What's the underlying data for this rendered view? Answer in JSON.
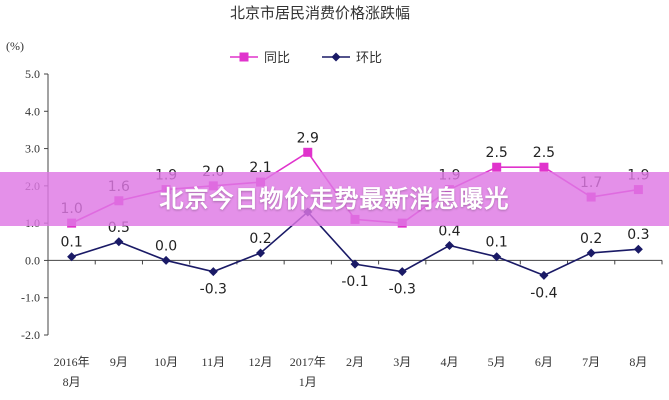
{
  "chart_data": {
    "type": "line",
    "title": "北京市居民消费价格涨跌幅",
    "ylabel": "(%)",
    "ylim": [
      -2.0,
      5.0
    ],
    "yticks": [
      "5.0",
      "4.0",
      "3.0",
      "2.0",
      "1.0",
      "0.0",
      "-1.0",
      "-2.0"
    ],
    "ytick_values": [
      5,
      4,
      3,
      2,
      1,
      0,
      -1,
      -2
    ],
    "categories": [
      [
        "2016年",
        "8月"
      ],
      [
        "9月"
      ],
      [
        "10月"
      ],
      [
        "11月"
      ],
      [
        "12月"
      ],
      [
        "2017年",
        "1月"
      ],
      [
        "2月"
      ],
      [
        "3月"
      ],
      [
        "4月"
      ],
      [
        "5月"
      ],
      [
        "6月"
      ],
      [
        "7月"
      ],
      [
        "8月"
      ]
    ],
    "legend_position": "top",
    "series": [
      {
        "name": "同比",
        "color": "#E033CC",
        "marker": "square",
        "values": [
          1.0,
          1.6,
          1.9,
          2.0,
          2.1,
          2.9,
          1.1,
          1.0,
          1.9,
          2.5,
          2.5,
          1.7,
          1.9
        ],
        "labels": [
          "1.0",
          "1.6",
          "1.9",
          "2.0",
          "2.1",
          "2.9",
          "",
          "",
          "1.9",
          "2.5",
          "2.5",
          "1.7",
          "1.9"
        ]
      },
      {
        "name": "环比",
        "color": "#1A1A66",
        "marker": "diamond",
        "values": [
          0.1,
          0.5,
          0.0,
          -0.3,
          0.2,
          1.3,
          -0.1,
          -0.3,
          0.4,
          0.1,
          -0.4,
          0.2,
          0.3
        ],
        "labels": [
          "0.1",
          "0.5",
          "0.0",
          "-0.3",
          "0.2",
          "",
          "-0.1",
          "-0.3",
          "0.4",
          "0.1",
          "-0.4",
          "0.2",
          "0.3"
        ]
      }
    ]
  },
  "banner": {
    "text": "北京今日物价走势最新消息曝光",
    "color": "#DE78E4"
  }
}
